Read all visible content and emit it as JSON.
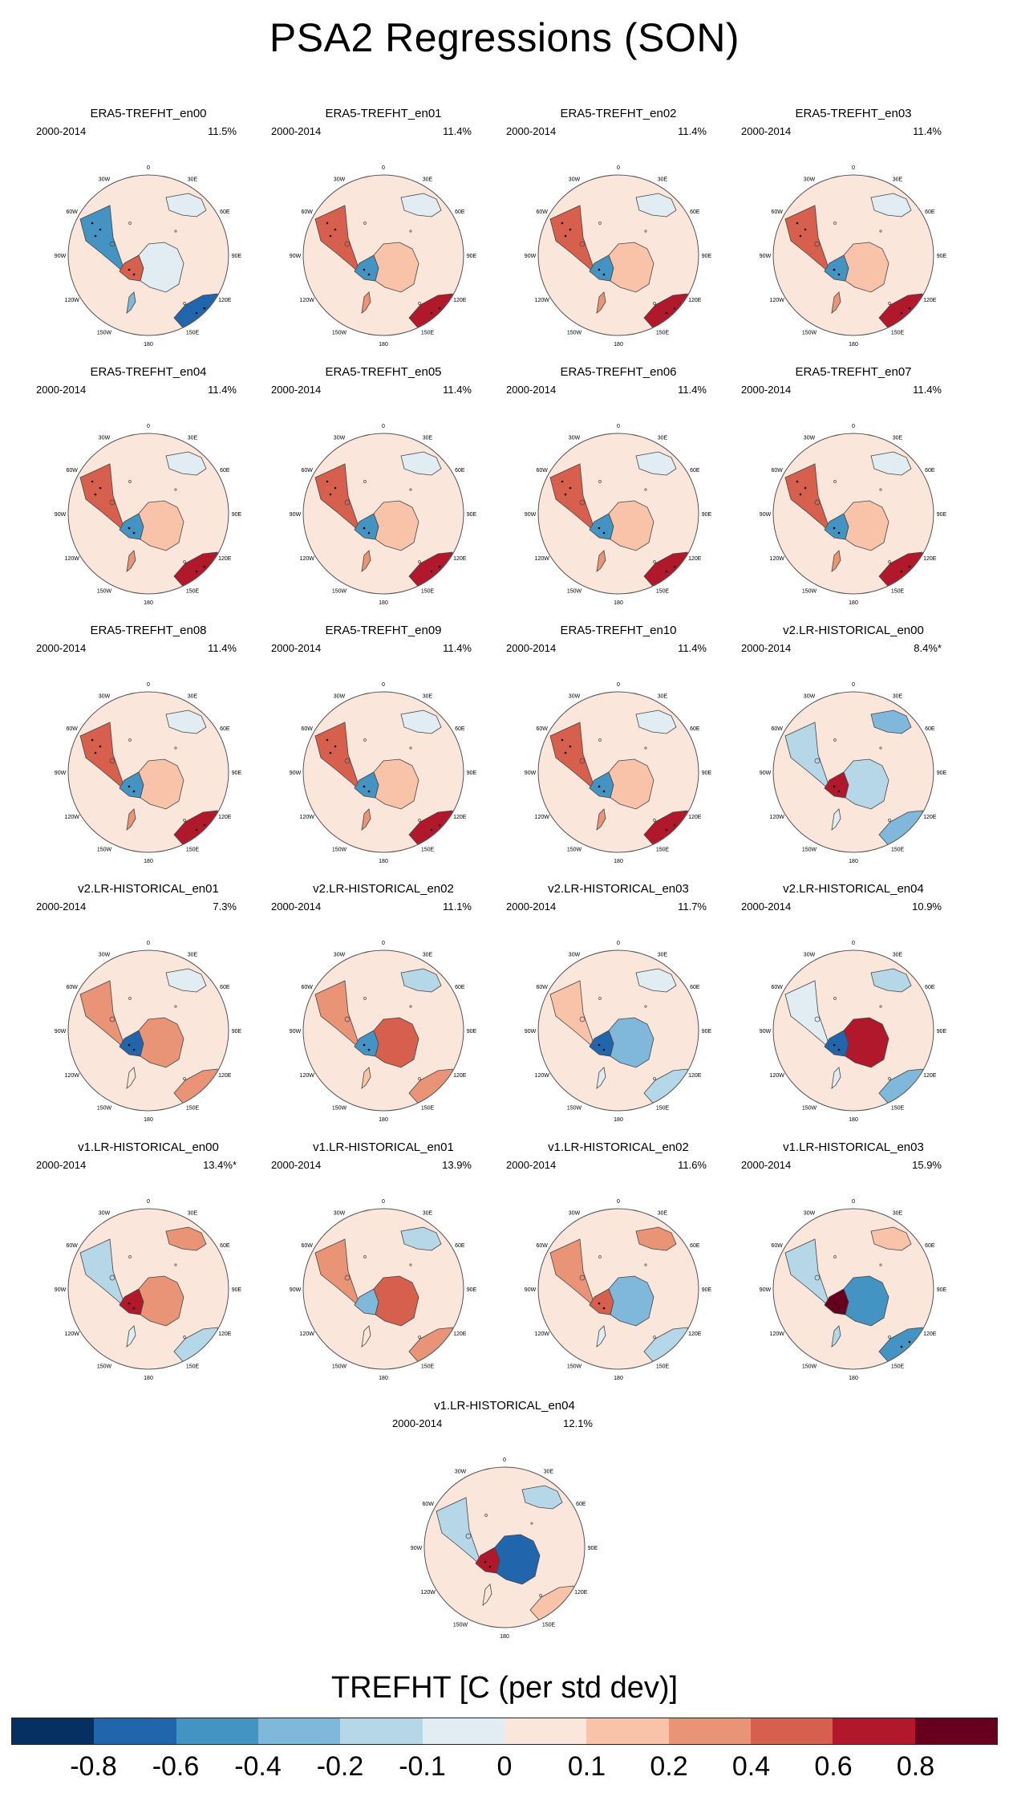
{
  "title": "PSA2 Regressions (SON)",
  "chart_data": {
    "type": "heatmap",
    "projection": "south-polar-stereographic",
    "title": "PSA2 Regressions (SON)",
    "variable": "TREFHT",
    "period": "2000-2014",
    "longitude_labels": [
      "0",
      "30E",
      "60E",
      "90E",
      "120E",
      "150E",
      "180",
      "150W",
      "120W",
      "90W",
      "60W",
      "30W"
    ],
    "panels": [
      {
        "name": "ERA5-TREFHT_en00",
        "period": "2000-2014",
        "pct": "11.5%",
        "pattern": {
          "americas": -0.45,
          "wantarctica": 0.5,
          "eantarctica": -0.1,
          "australia": -0.7,
          "africa": -0.1,
          "ocean": 0
        }
      },
      {
        "name": "ERA5-TREFHT_en01",
        "period": "2000-2014",
        "pct": "11.4%",
        "pattern": {
          "americas": 0.45,
          "wantarctica": -0.5,
          "eantarctica": 0.1,
          "australia": 0.7,
          "africa": -0.1,
          "ocean": 0
        }
      },
      {
        "name": "ERA5-TREFHT_en02",
        "period": "2000-2014",
        "pct": "11.4%",
        "pattern": {
          "americas": 0.45,
          "wantarctica": -0.5,
          "eantarctica": 0.1,
          "australia": 0.7,
          "africa": -0.1,
          "ocean": 0
        }
      },
      {
        "name": "ERA5-TREFHT_en03",
        "period": "2000-2014",
        "pct": "11.4%",
        "pattern": {
          "americas": 0.45,
          "wantarctica": -0.5,
          "eantarctica": 0.1,
          "australia": 0.7,
          "africa": -0.1,
          "ocean": 0
        }
      },
      {
        "name": "ERA5-TREFHT_en04",
        "period": "2000-2014",
        "pct": "11.4%",
        "pattern": {
          "americas": 0.45,
          "wantarctica": -0.5,
          "eantarctica": 0.1,
          "australia": 0.7,
          "africa": -0.1,
          "ocean": 0
        }
      },
      {
        "name": "ERA5-TREFHT_en05",
        "period": "2000-2014",
        "pct": "11.4%",
        "pattern": {
          "americas": 0.45,
          "wantarctica": -0.5,
          "eantarctica": 0.1,
          "australia": 0.7,
          "africa": -0.1,
          "ocean": 0
        }
      },
      {
        "name": "ERA5-TREFHT_en06",
        "period": "2000-2014",
        "pct": "11.4%",
        "pattern": {
          "americas": 0.45,
          "wantarctica": -0.5,
          "eantarctica": 0.1,
          "australia": 0.7,
          "africa": -0.1,
          "ocean": 0
        }
      },
      {
        "name": "ERA5-TREFHT_en07",
        "period": "2000-2014",
        "pct": "11.4%",
        "pattern": {
          "americas": 0.45,
          "wantarctica": -0.5,
          "eantarctica": 0.1,
          "australia": 0.7,
          "africa": -0.1,
          "ocean": 0
        }
      },
      {
        "name": "ERA5-TREFHT_en08",
        "period": "2000-2014",
        "pct": "11.4%",
        "pattern": {
          "americas": 0.45,
          "wantarctica": -0.5,
          "eantarctica": 0.1,
          "australia": 0.7,
          "africa": -0.1,
          "ocean": 0
        }
      },
      {
        "name": "ERA5-TREFHT_en09",
        "period": "2000-2014",
        "pct": "11.4%",
        "pattern": {
          "americas": 0.45,
          "wantarctica": -0.5,
          "eantarctica": 0.1,
          "australia": 0.7,
          "africa": -0.1,
          "ocean": 0
        }
      },
      {
        "name": "ERA5-TREFHT_en10",
        "period": "2000-2014",
        "pct": "11.4%",
        "pattern": {
          "americas": 0.45,
          "wantarctica": -0.5,
          "eantarctica": 0.1,
          "australia": 0.7,
          "africa": -0.1,
          "ocean": 0
        }
      },
      {
        "name": "v2.LR-HISTORICAL_en00",
        "period": "2000-2014",
        "pct": "8.4%*",
        "pattern": {
          "americas": -0.15,
          "wantarctica": 0.6,
          "eantarctica": -0.15,
          "australia": -0.3,
          "africa": -0.3,
          "ocean": 0
        }
      },
      {
        "name": "v2.LR-HISTORICAL_en01",
        "period": "2000-2014",
        "pct": "7.3%",
        "pattern": {
          "americas": 0.2,
          "wantarctica": -0.7,
          "eantarctica": 0.35,
          "australia": 0.25,
          "africa": -0.1,
          "ocean": 0
        }
      },
      {
        "name": "v2.LR-HISTORICAL_en02",
        "period": "2000-2014",
        "pct": "11.1%",
        "pattern": {
          "americas": 0.25,
          "wantarctica": -0.5,
          "eantarctica": 0.45,
          "australia": 0.35,
          "africa": -0.2,
          "ocean": 0
        }
      },
      {
        "name": "v2.LR-HISTORICAL_en03",
        "period": "2000-2014",
        "pct": "11.7%",
        "pattern": {
          "americas": 0.15,
          "wantarctica": -0.8,
          "eantarctica": -0.3,
          "australia": -0.2,
          "africa": -0.1,
          "ocean": 0
        }
      },
      {
        "name": "v2.LR-HISTORICAL_en04",
        "period": "2000-2014",
        "pct": "10.9%",
        "pattern": {
          "americas": -0.1,
          "wantarctica": -0.7,
          "eantarctica": 0.6,
          "australia": -0.25,
          "africa": -0.2,
          "ocean": 0
        }
      },
      {
        "name": "v1.LR-HISTORICAL_en00",
        "period": "2000-2014",
        "pct": "13.4%*",
        "pattern": {
          "americas": -0.15,
          "wantarctica": 0.7,
          "eantarctica": 0.3,
          "australia": -0.2,
          "africa": 0.35,
          "ocean": 0
        }
      },
      {
        "name": "v1.LR-HISTORICAL_en01",
        "period": "2000-2014",
        "pct": "13.9%",
        "pattern": {
          "americas": 0.2,
          "wantarctica": -0.3,
          "eantarctica": 0.45,
          "australia": 0.3,
          "africa": -0.15,
          "ocean": 0
        }
      },
      {
        "name": "v1.LR-HISTORICAL_en02",
        "period": "2000-2014",
        "pct": "11.6%",
        "pattern": {
          "americas": 0.3,
          "wantarctica": 0.45,
          "eantarctica": -0.3,
          "australia": -0.15,
          "africa": 0.3,
          "ocean": 0
        }
      },
      {
        "name": "v1.LR-HISTORICAL_en03",
        "period": "2000-2014",
        "pct": "15.9%",
        "pattern": {
          "americas": -0.2,
          "wantarctica": 0.85,
          "eantarctica": -0.6,
          "australia": -0.45,
          "africa": 0.1,
          "ocean": 0
        }
      },
      {
        "name": "v1.LR-HISTORICAL_en04",
        "period": "2000-2014",
        "pct": "12.1%",
        "pattern": {
          "americas": -0.15,
          "wantarctica": 0.7,
          "eantarctica": -0.7,
          "australia": 0.1,
          "africa": -0.2,
          "ocean": 0
        }
      }
    ],
    "colorbar": {
      "title": "TREFHT [C (per std dev)]",
      "levels": [
        "-0.8",
        "-0.6",
        "-0.4",
        "-0.2",
        "-0.1",
        "0",
        "0.1",
        "0.2",
        "0.4",
        "0.6",
        "0.8"
      ],
      "colors": [
        "#053061",
        "#2166ac",
        "#4393c3",
        "#7fb8da",
        "#b6d7e8",
        "#e2edf3",
        "#fbe6dc",
        "#f9c3a9",
        "#ea9477",
        "#d6604d",
        "#b2182b",
        "#67001f"
      ]
    }
  }
}
